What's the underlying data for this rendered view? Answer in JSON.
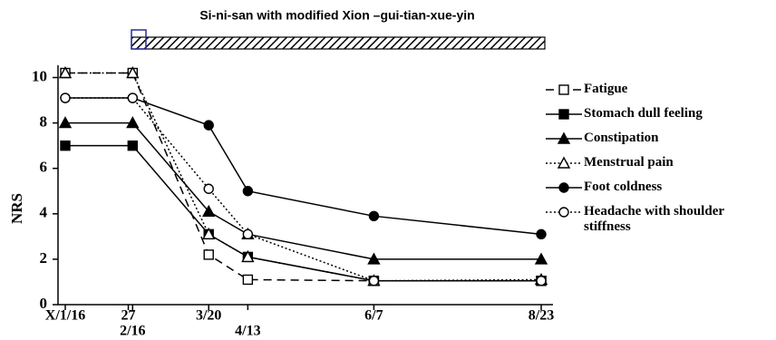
{
  "chart_data": {
    "type": "line",
    "title": "Si-ni-san with modified Xion –gui-tian-xue-yin",
    "y_label": "NRS",
    "x": [
      0,
      31,
      66,
      84,
      142,
      219
    ],
    "xlim": [
      0,
      219
    ],
    "xticks": [
      {
        "value": 0,
        "label": "X/1/16"
      },
      {
        "value": 29,
        "label": "27"
      },
      {
        "value": 31,
        "label": "2/16"
      },
      {
        "value": 66,
        "label": "3/20"
      },
      {
        "value": 84,
        "label": "4/13"
      },
      {
        "value": 142,
        "label": "6/7"
      },
      {
        "value": 219,
        "label": "8/23"
      }
    ],
    "ylim": [
      0,
      10.3
    ],
    "yticks": [
      0,
      2,
      4,
      6,
      8,
      10
    ],
    "series": [
      {
        "name": "Fatigue",
        "color": "#000000",
        "marker": "square-open",
        "dash": "dashed",
        "values": [
          10.2,
          10.2,
          2.2,
          1.1,
          1.05,
          1.05
        ]
      },
      {
        "name": "Stomach dull feeling",
        "color": "#000000",
        "marker": "square",
        "dash": "solid",
        "values": [
          7,
          7,
          3.1,
          2.1,
          1.05,
          1.05
        ]
      },
      {
        "name": "Constipation",
        "color": "#000000",
        "marker": "triangle",
        "dash": "solid",
        "values": [
          8,
          8,
          4.1,
          3.1,
          2,
          2
        ]
      },
      {
        "name": "Menstrual pain",
        "color": "#000000",
        "marker": "triangle-open",
        "dash": "dotted",
        "values": [
          10.2,
          10.2,
          3.1,
          2.1,
          1.05,
          1.1
        ]
      },
      {
        "name": "Foot coldness",
        "color": "#000000",
        "marker": "circle",
        "dash": "solid",
        "values": [
          9.1,
          9.1,
          7.9,
          5,
          3.9,
          3.1
        ]
      },
      {
        "name": "Headache with shoulder stiffness",
        "color": "#000000",
        "marker": "circle-open",
        "dash": "dotted",
        "values": [
          9.1,
          9.1,
          5.1,
          3.1,
          1.05,
          1.05
        ]
      }
    ]
  }
}
